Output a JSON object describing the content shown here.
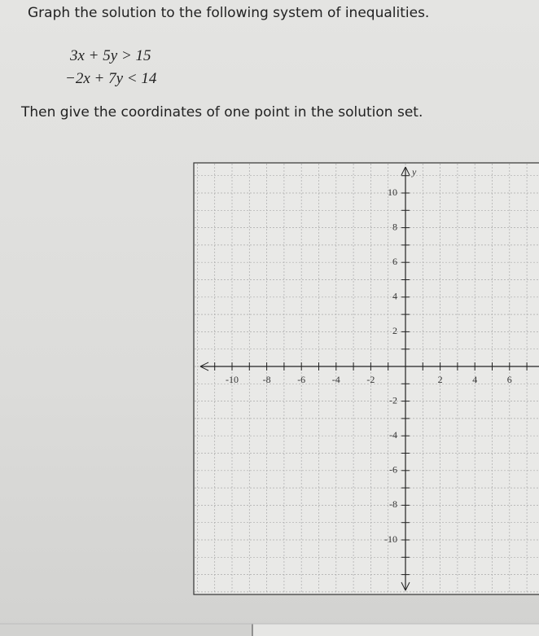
{
  "question": {
    "prompt": "Graph the solution to the following system of inequalities.",
    "inequalities": [
      "3x + 5y > 15",
      "−2x + 7y < 14"
    ],
    "instruction": "Then give the coordinates of one point in the solution set."
  },
  "graph": {
    "y_axis_label": "y",
    "x_ticks": [
      -10,
      -8,
      -6,
      -4,
      -2,
      2,
      4,
      6
    ],
    "y_ticks": [
      10,
      8,
      6,
      4,
      2,
      -2,
      -4,
      -6,
      -8,
      -10
    ]
  }
}
